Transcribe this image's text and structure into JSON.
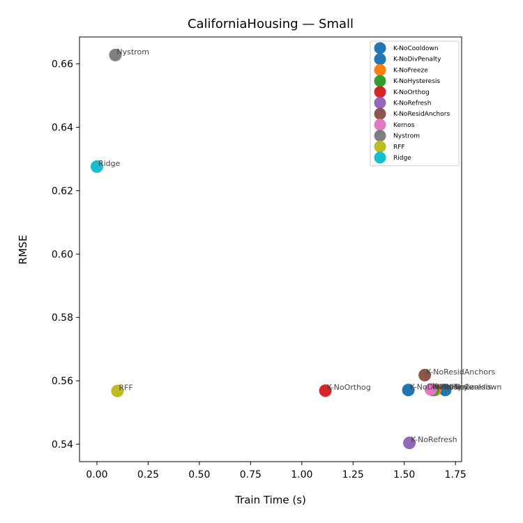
{
  "chart_data": {
    "type": "scatter",
    "title": "CaliforniaHousing — Small",
    "xlabel": "Train Time (s)",
    "ylabel": "RMSE",
    "xlim": [
      -0.085,
      1.78
    ],
    "ylim": [
      0.5345,
      0.6685
    ],
    "xticks": [
      0.0,
      0.25,
      0.5,
      0.75,
      1.0,
      1.25,
      1.5,
      1.75
    ],
    "xtick_labels": [
      "0.00",
      "0.25",
      "0.50",
      "0.75",
      "1.00",
      "1.25",
      "1.50",
      "1.75"
    ],
    "yticks": [
      0.54,
      0.56,
      0.58,
      0.6,
      0.62,
      0.64,
      0.66
    ],
    "ytick_labels": [
      "0.54",
      "0.56",
      "0.58",
      "0.60",
      "0.62",
      "0.64",
      "0.66"
    ],
    "grid": false,
    "legend_position": "top-right",
    "series": [
      {
        "name": "K-NoCooldown",
        "color": "#1f77b4",
        "x": 1.7,
        "y": 0.5571
      },
      {
        "name": "K-NoDivPenalty",
        "color": "#1f77b4",
        "x": 1.52,
        "y": 0.5571
      },
      {
        "name": "K-NoFreeze",
        "color": "#ff7f0e",
        "x": 1.65,
        "y": 0.5571
      },
      {
        "name": "K-NoHysteresis",
        "color": "#2ca02c",
        "x": 1.64,
        "y": 0.5571
      },
      {
        "name": "K-NoOrthog",
        "color": "#d62728",
        "x": 1.115,
        "y": 0.5569
      },
      {
        "name": "K-NoRefresh",
        "color": "#9467bd",
        "x": 1.525,
        "y": 0.5404
      },
      {
        "name": "K-NoResidAnchors",
        "color": "#8c564b",
        "x": 1.6,
        "y": 0.5618
      },
      {
        "name": "Kernos",
        "color": "#e377c2",
        "x": 1.63,
        "y": 0.5573
      },
      {
        "name": "Nystrom",
        "color": "#7f7f7f",
        "x": 0.09,
        "y": 0.6628
      },
      {
        "name": "RFF",
        "color": "#bcbd22",
        "x": 0.1,
        "y": 0.5568
      },
      {
        "name": "Ridge",
        "color": "#17becf",
        "x": 0.0,
        "y": 0.6276
      }
    ]
  }
}
